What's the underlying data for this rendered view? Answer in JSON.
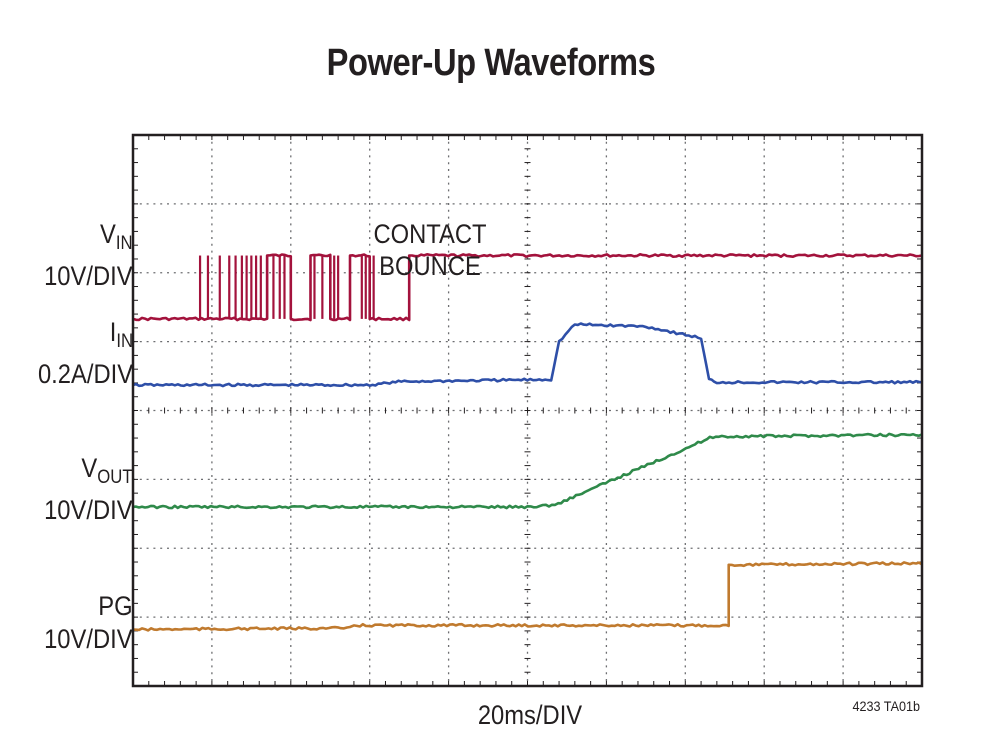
{
  "chart_data": {
    "type": "line",
    "title": "Power-Up Waveforms",
    "xlabel": "20ms/DIV",
    "figure_id": "4233 TA01b",
    "grid": true,
    "x_divisions": 10,
    "y_divisions": 8,
    "annotation": [
      "CONTACT",
      "BOUNCE"
    ],
    "series": [
      {
        "name": "V_IN",
        "label_main": "V",
        "label_sub": "IN",
        "scale": "10V/DIV",
        "color": "#a3123c",
        "x": [
          0,
          1.7,
          1.7,
          2.0,
          2.0,
          2.25,
          2.25,
          2.5,
          2.5,
          2.75,
          2.75,
          3.0,
          3.0,
          3.5,
          3.5,
          10
        ],
        "y": [
          5.33,
          5.33,
          6.25,
          6.25,
          5.33,
          5.33,
          6.25,
          6.25,
          5.33,
          5.33,
          6.25,
          6.25,
          5.33,
          5.33,
          6.25,
          6.25
        ]
      },
      {
        "name": "I_IN",
        "label_main": "I",
        "label_sub": "IN",
        "scale": "0.2A/DIV",
        "color": "#2e4fa8",
        "x": [
          0,
          3.0,
          3.4,
          5.3,
          5.4,
          5.6,
          6.5,
          7.2,
          7.3,
          7.4,
          10
        ],
        "y": [
          4.37,
          4.37,
          4.42,
          4.45,
          5.0,
          5.25,
          5.22,
          5.05,
          4.45,
          4.41,
          4.41
        ]
      },
      {
        "name": "V_OUT",
        "label_main": "V",
        "label_sub": "OUT",
        "scale": "10V/DIV",
        "color": "#2f8a4a",
        "x": [
          0,
          5.0,
          5.35,
          7.35,
          10
        ],
        "y": [
          2.6,
          2.6,
          2.63,
          3.62,
          3.65
        ]
      },
      {
        "name": "PG",
        "label_main": "PG",
        "label_sub": "",
        "scale": "10V/DIV",
        "color": "#c07a2e",
        "x": [
          0,
          2.75,
          2.8,
          7.55,
          7.55,
          10
        ],
        "y": [
          0.82,
          0.84,
          0.88,
          0.88,
          1.76,
          1.78
        ]
      }
    ]
  }
}
